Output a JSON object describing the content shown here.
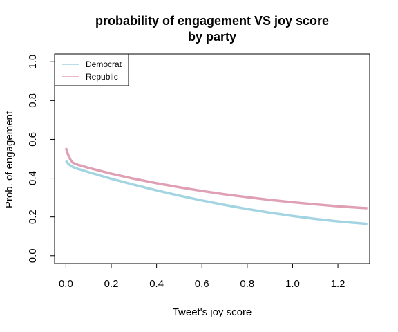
{
  "chart_data": {
    "type": "line",
    "title": "probability of engagement VS joy score",
    "subtitle": "by party",
    "xlabel": "Tweet's joy score",
    "ylabel": "Prob. of engagement",
    "xlim": [
      -0.05,
      1.34
    ],
    "ylim": [
      -0.04,
      1.04
    ],
    "x_ticks": [
      0.0,
      0.2,
      0.4,
      0.6,
      0.8,
      1.0,
      1.2
    ],
    "x_tick_labels": [
      "0.0",
      "0.2",
      "0.4",
      "0.6",
      "0.8",
      "1.0",
      "1.2"
    ],
    "y_ticks": [
      0.0,
      0.2,
      0.4,
      0.6,
      0.8,
      1.0
    ],
    "y_tick_labels": [
      "0.0",
      "0.2",
      "0.4",
      "0.6",
      "0.8",
      "1.0"
    ],
    "grid": false,
    "legend_position": "top-left",
    "series": [
      {
        "name": "Democrat",
        "color": "#a3d4e1",
        "x": [
          0.0,
          0.01,
          0.02,
          0.03,
          0.05,
          0.1,
          0.2,
          0.3,
          0.4,
          0.5,
          0.6,
          0.7,
          0.8,
          0.9,
          1.0,
          1.1,
          1.2,
          1.3,
          1.33
        ],
        "y": [
          0.49,
          0.475,
          0.465,
          0.458,
          0.449,
          0.431,
          0.397,
          0.366,
          0.337,
          0.31,
          0.285,
          0.262,
          0.241,
          0.222,
          0.205,
          0.19,
          0.177,
          0.167,
          0.164
        ]
      },
      {
        "name": "Republic",
        "color": "#e0a0b3",
        "x": [
          0.0,
          0.01,
          0.02,
          0.03,
          0.05,
          0.1,
          0.2,
          0.3,
          0.4,
          0.5,
          0.6,
          0.7,
          0.8,
          0.9,
          1.0,
          1.1,
          1.2,
          1.3,
          1.33
        ],
        "y": [
          0.555,
          0.52,
          0.495,
          0.48,
          0.47,
          0.453,
          0.423,
          0.397,
          0.374,
          0.353,
          0.334,
          0.317,
          0.302,
          0.288,
          0.276,
          0.265,
          0.255,
          0.247,
          0.245
        ]
      }
    ]
  }
}
